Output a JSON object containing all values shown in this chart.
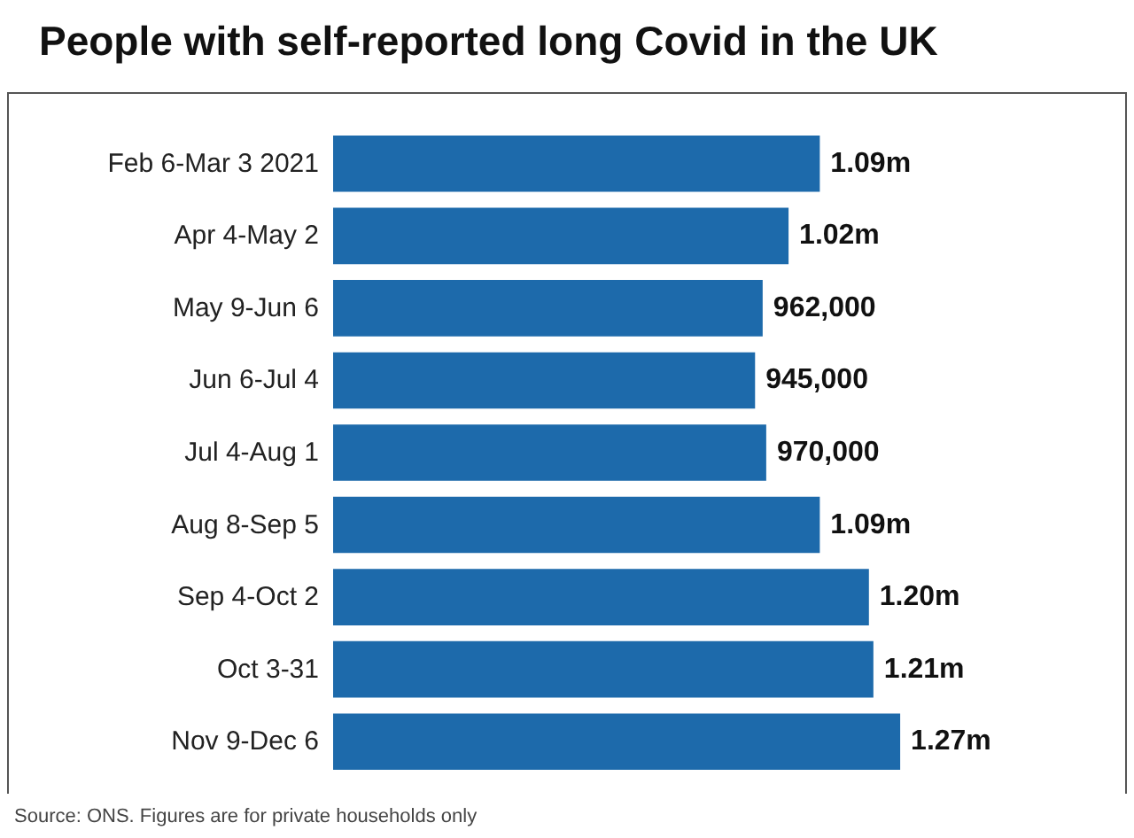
{
  "chart_data": {
    "type": "bar",
    "orientation": "horizontal",
    "title": "People with self-reported long Covid in the UK",
    "categories": [
      "Feb 6-Mar 3 2021",
      "Apr 4-May 2",
      "May 9-Jun 6",
      "Jun 6-Jul 4",
      "Jul 4-Aug 1",
      "Aug 8-Sep 5",
      "Sep 4-Oct 2",
      "Oct 3-31",
      "Nov 9-Dec 6"
    ],
    "values": [
      1090000,
      1020000,
      962000,
      945000,
      970000,
      1090000,
      1200000,
      1210000,
      1270000
    ],
    "value_labels": [
      "1.09m",
      "1.02m",
      "962,000",
      "945,000",
      "970,000",
      "1.09m",
      "1.20m",
      "1.21m",
      "1.27m"
    ],
    "color": "#1d6aab",
    "annotations": [
      "Source: ONS. Figures are for private households only"
    ]
  }
}
